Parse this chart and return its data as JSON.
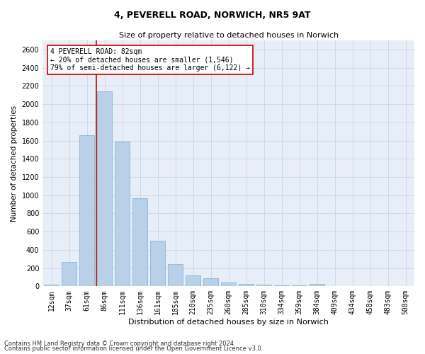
{
  "title1": "4, PEVERELL ROAD, NORWICH, NR5 9AT",
  "title2": "Size of property relative to detached houses in Norwich",
  "xlabel": "Distribution of detached houses by size in Norwich",
  "ylabel": "Number of detached properties",
  "categories": [
    "12sqm",
    "37sqm",
    "61sqm",
    "86sqm",
    "111sqm",
    "136sqm",
    "161sqm",
    "185sqm",
    "210sqm",
    "235sqm",
    "260sqm",
    "285sqm",
    "310sqm",
    "334sqm",
    "359sqm",
    "384sqm",
    "409sqm",
    "434sqm",
    "458sqm",
    "483sqm",
    "508sqm"
  ],
  "values": [
    20,
    270,
    1660,
    2140,
    1590,
    970,
    500,
    240,
    120,
    90,
    40,
    25,
    15,
    10,
    8,
    25,
    5,
    5,
    5,
    5,
    5
  ],
  "bar_color": "#b8d0e8",
  "bar_edge_color": "#7aaed6",
  "grid_color": "#c8d4e8",
  "background_color": "#e8eef8",
  "vline_color": "#cc0000",
  "vline_x": 2.55,
  "annotation_text": "4 PEVERELL ROAD: 82sqm\n← 20% of detached houses are smaller (1,546)\n79% of semi-detached houses are larger (6,122) →",
  "annotation_box_color": "#ffffff",
  "annotation_box_edge": "#cc0000",
  "ylim": [
    0,
    2700
  ],
  "yticks": [
    0,
    200,
    400,
    600,
    800,
    1000,
    1200,
    1400,
    1600,
    1800,
    2000,
    2200,
    2400,
    2600
  ],
  "footnote1": "Contains HM Land Registry data © Crown copyright and database right 2024.",
  "footnote2": "Contains public sector information licensed under the Open Government Licence v3.0.",
  "title1_fontsize": 9,
  "title2_fontsize": 8,
  "xlabel_fontsize": 8,
  "ylabel_fontsize": 7.5,
  "tick_fontsize": 7,
  "annotation_fontsize": 7,
  "footnote_fontsize": 6
}
